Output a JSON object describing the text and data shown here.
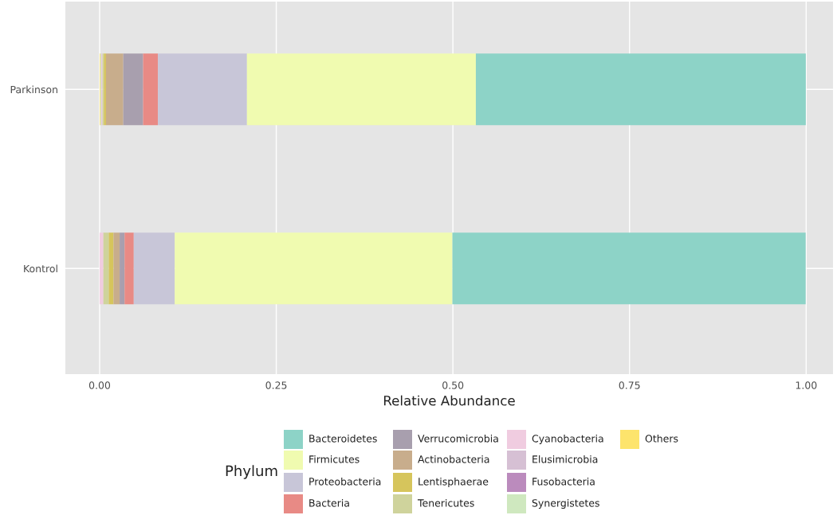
{
  "chart_data": {
    "type": "bar",
    "orientation": "horizontal",
    "stacked": true,
    "xlabel": "Relative Abundance",
    "legend_title": "Phylum",
    "legend": "bottom",
    "grid": true,
    "categories": [
      "Parkinson",
      "Kontrol"
    ],
    "xlim": [
      -0.0485,
      1.038
    ],
    "xticks": [
      {
        "value": 0,
        "label": "0.00"
      },
      {
        "value": 0.25,
        "label": "0.25"
      },
      {
        "value": 0.5,
        "label": "0.50"
      },
      {
        "value": 0.75,
        "label": "0.75"
      },
      {
        "value": 1,
        "label": "1.00"
      }
    ],
    "series": [
      {
        "name": "Others",
        "color": "#fde46c",
        "values": [
          0.001,
          0
        ]
      },
      {
        "name": "Synergistetes",
        "color": "#cfe8bf",
        "values": [
          0.001,
          0
        ]
      },
      {
        "name": "Fusobacteria",
        "color": "#bb8bbd",
        "values": [
          0,
          0
        ]
      },
      {
        "name": "Elusimicrobia",
        "color": "#d6c0d4",
        "values": [
          0.001,
          0
        ]
      },
      {
        "name": "Cyanobacteria",
        "color": "#f0cce0",
        "values": [
          0.001,
          0.0053
        ]
      },
      {
        "name": "Tenericutes",
        "color": "#cfd39c",
        "values": [
          0.002,
          0.0076
        ]
      },
      {
        "name": "Lentisphaerae",
        "color": "#d6c55c",
        "values": [
          0.003,
          0.0068
        ]
      },
      {
        "name": "Actinobacteria",
        "color": "#c8ad8c",
        "values": [
          0.0245,
          0.0086
        ]
      },
      {
        "name": "Verrucomicrobia",
        "color": "#a89fae",
        "values": [
          0.028,
          0.007
        ]
      },
      {
        "name": "Bacteria",
        "color": "#e88a85",
        "values": [
          0.021,
          0.013
        ]
      },
      {
        "name": "Proteobacteria",
        "color": "#c8c6d8",
        "values": [
          0.126,
          0.058
        ]
      },
      {
        "name": "Firmicutes",
        "color": "#f0fbb0",
        "values": [
          0.324,
          0.393
        ]
      },
      {
        "name": "Bacteroidetes",
        "color": "#8dd3c7",
        "values": [
          0.467,
          0.5
        ]
      }
    ]
  }
}
